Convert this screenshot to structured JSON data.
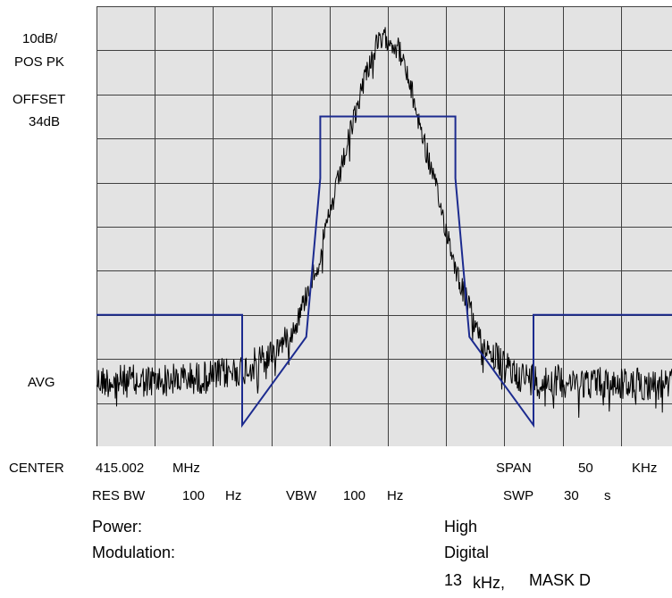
{
  "chart_data": {
    "type": "line",
    "title": "",
    "xlabel": "",
    "ylabel": "",
    "x_unit": "kHz offset from center",
    "xlim": [
      -25,
      25
    ],
    "ylim_div": [
      0,
      10
    ],
    "grid": true,
    "grid_divisions": {
      "x": 10,
      "y": 10
    },
    "colors": {
      "background": "#e3e3e3",
      "grid": "#404040",
      "trace": "#000000",
      "mask": "#1c2b8f"
    },
    "settings": {
      "scale": "10dB/",
      "detector": "POS PK",
      "offset_label": "OFFSET",
      "offset_value": "34dB",
      "avg_label": "AVG",
      "center_label": "CENTER",
      "center_value": "415.002",
      "center_unit": "MHz",
      "span_label": "SPAN",
      "span_value": "50",
      "span_unit": "KHz",
      "rbw_label": "RES BW",
      "rbw_value": "100",
      "rbw_unit": "Hz",
      "vbw_label": "VBW",
      "vbw_value": "100",
      "vbw_unit": "Hz",
      "swp_label": "SWP",
      "swp_value": "30",
      "swp_unit": "s"
    },
    "series": [
      {
        "kind": "mask",
        "x": [
          -25,
          -12.5,
          -12.5,
          -7,
          -5.8,
          -5.8,
          5.8,
          5.8,
          7,
          12.5,
          12.5,
          25
        ],
        "y": [
          7,
          7,
          9.5,
          7.5,
          3.9,
          2.5,
          2.5,
          3.9,
          7.5,
          9.5,
          7,
          7
        ]
      },
      {
        "kind": "trace",
        "x": [
          -25,
          -20,
          -15,
          -12,
          -10,
          -8,
          -6,
          -4,
          -2,
          -1,
          0,
          1,
          2,
          4,
          6,
          8,
          10,
          12,
          15,
          20,
          25
        ],
        "y": [
          8.5,
          8.5,
          8.4,
          8.2,
          7.9,
          7.3,
          5.8,
          3.7,
          1.6,
          0.9,
          0.7,
          1.0,
          1.9,
          4.0,
          6.1,
          7.6,
          8.2,
          8.45,
          8.5,
          8.55,
          8.6
        ]
      }
    ]
  },
  "info": {
    "power_label": "Power:",
    "power_value": "High",
    "modulation_label": "Modulation:",
    "modulation_value": "Digital",
    "bw_value": "13",
    "bw_unit": "kHz,",
    "mask_name": "MASK D"
  }
}
